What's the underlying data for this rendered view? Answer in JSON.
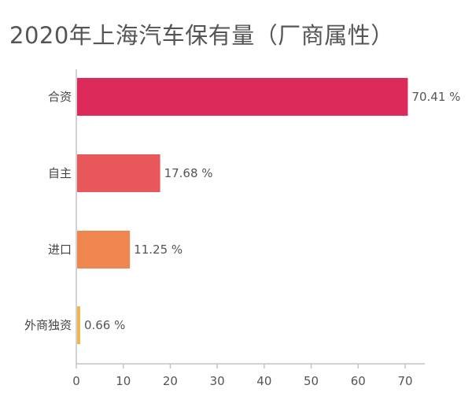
{
  "chart_data": {
    "type": "bar",
    "orientation": "horizontal",
    "title": "2020年上海汽车保有量（厂商属性）",
    "categories": [
      "合资",
      "自主",
      "进口",
      "外商独资"
    ],
    "values": [
      70.41,
      17.68,
      11.25,
      0.66
    ],
    "value_labels": [
      "70.41 %",
      "17.68 %",
      "11.25 %",
      "0.66 %"
    ],
    "bar_colors": [
      "#dc2a5b",
      "#e8575a",
      "#f0864f",
      "#f2b24d"
    ],
    "xlim": [
      0,
      75
    ],
    "xticks": [
      0,
      10,
      20,
      30,
      40,
      50,
      60,
      70
    ],
    "xlabel": "",
    "ylabel": "",
    "grid": false,
    "legend": "none"
  }
}
